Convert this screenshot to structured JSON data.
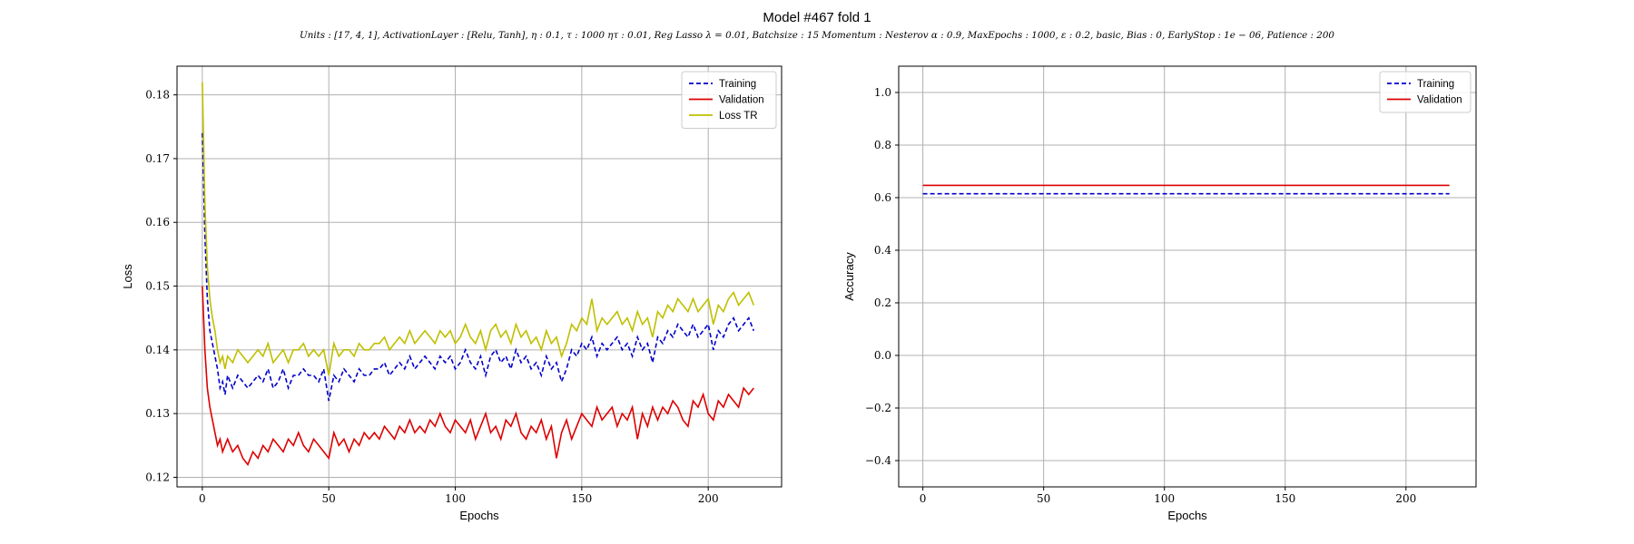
{
  "figure": {
    "title": "Model #467 fold 1",
    "subtitle": "Units : [17, 4, 1], ActivationLayer : [Relu, Tanh], η : 0.1, τ : 1000 ητ : 0.01, Reg Lasso λ = 0.01, Batchsize : 15 Momentum : Nesterov α : 0.9, MaxEpochs : 1000, ε : 0.2, basic, Bias : 0, EarlyStop : 1e − 06, Patience : 200"
  },
  "colors": {
    "training": "#0000cc",
    "validation": "#dd0000",
    "loss_tr": "#bfbf00",
    "grid": "#b0b0b0"
  },
  "chart_data": [
    {
      "type": "line",
      "xlabel": "Epochs",
      "ylabel": "Loss",
      "xlim": [
        -10,
        229
      ],
      "ylim": [
        0.1185,
        0.1845
      ],
      "xticks": [
        0,
        50,
        100,
        150,
        200
      ],
      "yticks": [
        0.12,
        0.13,
        0.14,
        0.15,
        0.16,
        0.17,
        0.18
      ],
      "grid": true,
      "legend": "top-right",
      "legend_entries": [
        "Training",
        "Validation",
        "Loss TR"
      ],
      "series": [
        {
          "name": "Training",
          "style": "dashed",
          "x": [
            0,
            1,
            2,
            3,
            4,
            5,
            6,
            7,
            8,
            9,
            10,
            12,
            14,
            16,
            18,
            20,
            22,
            24,
            26,
            28,
            30,
            32,
            34,
            36,
            38,
            40,
            42,
            44,
            46,
            48,
            50,
            52,
            54,
            56,
            58,
            60,
            62,
            64,
            66,
            68,
            70,
            72,
            74,
            76,
            78,
            80,
            82,
            84,
            86,
            88,
            90,
            92,
            94,
            96,
            98,
            100,
            102,
            104,
            106,
            108,
            110,
            112,
            114,
            116,
            118,
            120,
            122,
            124,
            126,
            128,
            130,
            132,
            134,
            136,
            138,
            140,
            142,
            144,
            146,
            148,
            150,
            152,
            154,
            156,
            158,
            160,
            162,
            164,
            166,
            168,
            170,
            172,
            174,
            176,
            178,
            180,
            182,
            184,
            186,
            188,
            190,
            192,
            194,
            196,
            198,
            200,
            202,
            204,
            206,
            208,
            210,
            212,
            214,
            216,
            218
          ],
          "y": [
            0.174,
            0.158,
            0.148,
            0.143,
            0.141,
            0.139,
            0.137,
            0.134,
            0.135,
            0.133,
            0.136,
            0.134,
            0.136,
            0.135,
            0.134,
            0.135,
            0.136,
            0.135,
            0.137,
            0.134,
            0.135,
            0.137,
            0.134,
            0.136,
            0.136,
            0.137,
            0.136,
            0.136,
            0.135,
            0.137,
            0.132,
            0.136,
            0.135,
            0.137,
            0.136,
            0.135,
            0.137,
            0.136,
            0.136,
            0.137,
            0.137,
            0.138,
            0.136,
            0.137,
            0.138,
            0.137,
            0.139,
            0.137,
            0.138,
            0.139,
            0.138,
            0.137,
            0.139,
            0.138,
            0.139,
            0.137,
            0.138,
            0.14,
            0.138,
            0.137,
            0.139,
            0.136,
            0.139,
            0.14,
            0.138,
            0.139,
            0.137,
            0.14,
            0.138,
            0.139,
            0.137,
            0.138,
            0.136,
            0.139,
            0.137,
            0.138,
            0.135,
            0.137,
            0.14,
            0.139,
            0.141,
            0.14,
            0.142,
            0.139,
            0.141,
            0.14,
            0.141,
            0.142,
            0.14,
            0.141,
            0.139,
            0.142,
            0.14,
            0.141,
            0.138,
            0.142,
            0.141,
            0.143,
            0.142,
            0.144,
            0.143,
            0.142,
            0.144,
            0.142,
            0.143,
            0.144,
            0.14,
            0.143,
            0.142,
            0.144,
            0.145,
            0.143,
            0.144,
            0.145,
            0.143
          ]
        },
        {
          "name": "Validation",
          "style": "solid",
          "x": [
            0,
            1,
            2,
            3,
            4,
            5,
            6,
            7,
            8,
            9,
            10,
            12,
            14,
            16,
            18,
            20,
            22,
            24,
            26,
            28,
            30,
            32,
            34,
            36,
            38,
            40,
            42,
            44,
            46,
            48,
            50,
            52,
            54,
            56,
            58,
            60,
            62,
            64,
            66,
            68,
            70,
            72,
            74,
            76,
            78,
            80,
            82,
            84,
            86,
            88,
            90,
            92,
            94,
            96,
            98,
            100,
            102,
            104,
            106,
            108,
            110,
            112,
            114,
            116,
            118,
            120,
            122,
            124,
            126,
            128,
            130,
            132,
            134,
            136,
            138,
            140,
            142,
            144,
            146,
            148,
            150,
            152,
            154,
            156,
            158,
            160,
            162,
            164,
            166,
            168,
            170,
            172,
            174,
            176,
            178,
            180,
            182,
            184,
            186,
            188,
            190,
            192,
            194,
            196,
            198,
            200,
            202,
            204,
            206,
            208,
            210,
            212,
            214,
            216,
            218
          ],
          "y": [
            0.15,
            0.14,
            0.134,
            0.131,
            0.129,
            0.127,
            0.125,
            0.126,
            0.124,
            0.125,
            0.126,
            0.124,
            0.125,
            0.123,
            0.122,
            0.124,
            0.123,
            0.125,
            0.124,
            0.126,
            0.125,
            0.124,
            0.126,
            0.125,
            0.127,
            0.125,
            0.124,
            0.126,
            0.125,
            0.124,
            0.123,
            0.127,
            0.125,
            0.126,
            0.124,
            0.126,
            0.125,
            0.127,
            0.126,
            0.127,
            0.126,
            0.128,
            0.127,
            0.126,
            0.128,
            0.127,
            0.129,
            0.127,
            0.128,
            0.127,
            0.129,
            0.128,
            0.13,
            0.128,
            0.127,
            0.129,
            0.128,
            0.127,
            0.129,
            0.126,
            0.128,
            0.13,
            0.127,
            0.128,
            0.126,
            0.129,
            0.128,
            0.13,
            0.127,
            0.126,
            0.128,
            0.127,
            0.129,
            0.126,
            0.128,
            0.123,
            0.127,
            0.129,
            0.126,
            0.128,
            0.13,
            0.129,
            0.128,
            0.131,
            0.129,
            0.13,
            0.131,
            0.128,
            0.13,
            0.129,
            0.131,
            0.126,
            0.13,
            0.128,
            0.131,
            0.129,
            0.131,
            0.13,
            0.132,
            0.131,
            0.129,
            0.128,
            0.132,
            0.131,
            0.133,
            0.13,
            0.129,
            0.132,
            0.131,
            0.133,
            0.132,
            0.131,
            0.134,
            0.133,
            0.134
          ]
        },
        {
          "name": "Loss TR",
          "style": "solid",
          "x": [
            0,
            1,
            2,
            3,
            4,
            5,
            6,
            7,
            8,
            9,
            10,
            12,
            14,
            16,
            18,
            20,
            22,
            24,
            26,
            28,
            30,
            32,
            34,
            36,
            38,
            40,
            42,
            44,
            46,
            48,
            50,
            52,
            54,
            56,
            58,
            60,
            62,
            64,
            66,
            68,
            70,
            72,
            74,
            76,
            78,
            80,
            82,
            84,
            86,
            88,
            90,
            92,
            94,
            96,
            98,
            100,
            102,
            104,
            106,
            108,
            110,
            112,
            114,
            116,
            118,
            120,
            122,
            124,
            126,
            128,
            130,
            132,
            134,
            136,
            138,
            140,
            142,
            144,
            146,
            148,
            150,
            152,
            154,
            156,
            158,
            160,
            162,
            164,
            166,
            168,
            170,
            172,
            174,
            176,
            178,
            180,
            182,
            184,
            186,
            188,
            190,
            192,
            194,
            196,
            198,
            200,
            202,
            204,
            206,
            208,
            210,
            212,
            214,
            216,
            218
          ],
          "y": [
            0.182,
            0.163,
            0.153,
            0.148,
            0.145,
            0.143,
            0.14,
            0.138,
            0.139,
            0.137,
            0.139,
            0.138,
            0.14,
            0.139,
            0.138,
            0.139,
            0.14,
            0.139,
            0.141,
            0.138,
            0.139,
            0.14,
            0.138,
            0.14,
            0.14,
            0.141,
            0.139,
            0.14,
            0.139,
            0.14,
            0.136,
            0.141,
            0.139,
            0.14,
            0.14,
            0.139,
            0.141,
            0.14,
            0.14,
            0.141,
            0.141,
            0.142,
            0.14,
            0.141,
            0.142,
            0.141,
            0.143,
            0.141,
            0.142,
            0.143,
            0.142,
            0.141,
            0.143,
            0.142,
            0.143,
            0.141,
            0.142,
            0.144,
            0.142,
            0.141,
            0.143,
            0.14,
            0.143,
            0.144,
            0.142,
            0.143,
            0.141,
            0.144,
            0.142,
            0.143,
            0.141,
            0.142,
            0.14,
            0.143,
            0.141,
            0.142,
            0.139,
            0.141,
            0.144,
            0.143,
            0.145,
            0.144,
            0.148,
            0.143,
            0.145,
            0.144,
            0.145,
            0.146,
            0.144,
            0.145,
            0.143,
            0.146,
            0.144,
            0.145,
            0.142,
            0.146,
            0.145,
            0.147,
            0.146,
            0.148,
            0.147,
            0.146,
            0.148,
            0.146,
            0.147,
            0.148,
            0.144,
            0.147,
            0.146,
            0.148,
            0.149,
            0.147,
            0.148,
            0.149,
            0.147
          ]
        }
      ]
    },
    {
      "type": "line",
      "xlabel": "Epochs",
      "ylabel": "Accuracy",
      "xlim": [
        -10,
        229
      ],
      "ylim": [
        -0.5,
        1.1
      ],
      "xticks": [
        0,
        50,
        100,
        150,
        200
      ],
      "yticks": [
        -0.4,
        -0.2,
        0.0,
        0.2,
        0.4,
        0.6,
        0.8,
        1.0
      ],
      "grid": true,
      "legend": "top-right",
      "legend_entries": [
        "Training",
        "Validation"
      ],
      "series": [
        {
          "name": "Training",
          "style": "dashed",
          "x": [
            0,
            218
          ],
          "y": [
            0.615,
            0.615
          ]
        },
        {
          "name": "Validation",
          "style": "solid",
          "x": [
            0,
            218
          ],
          "y": [
            0.647,
            0.647
          ]
        }
      ]
    }
  ]
}
